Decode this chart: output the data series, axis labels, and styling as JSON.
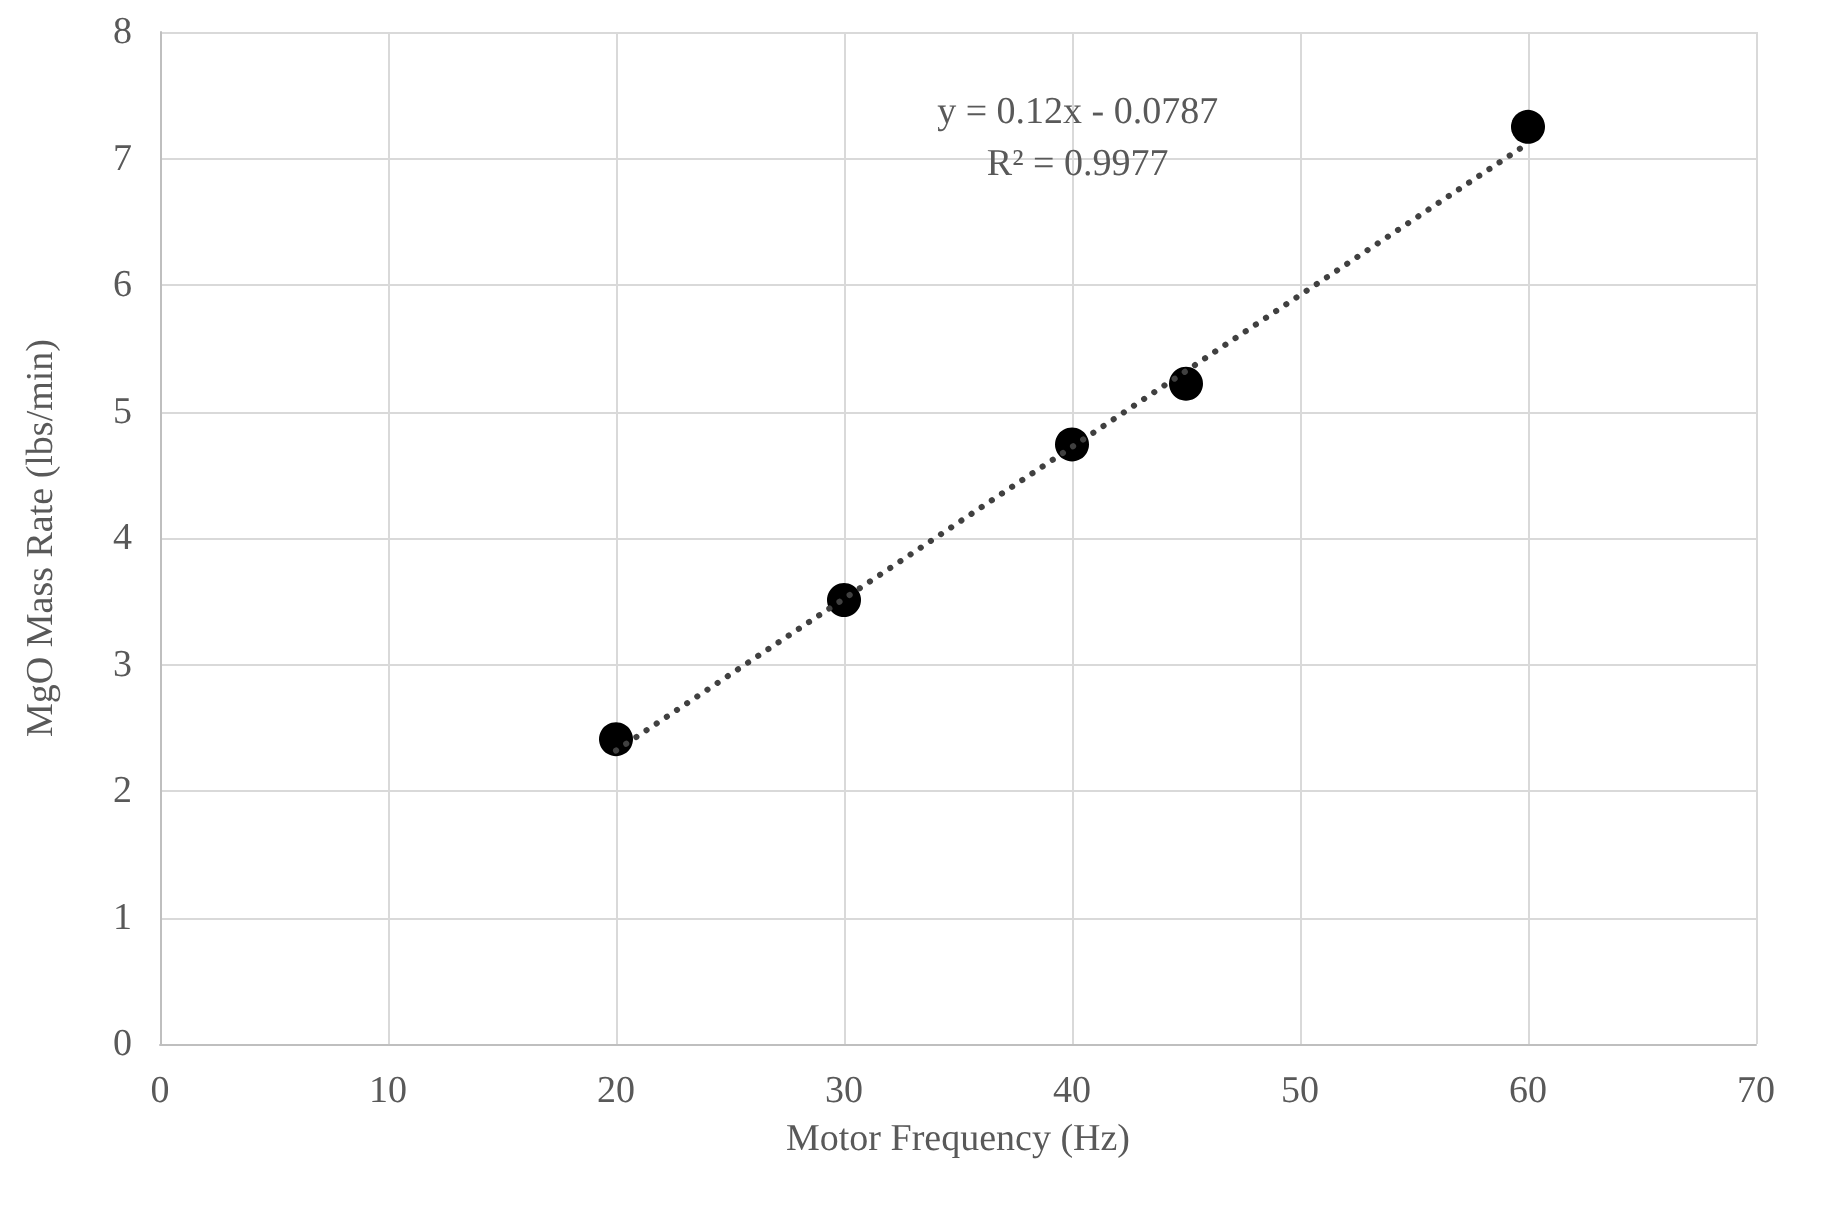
{
  "chart_data": {
    "type": "scatter",
    "xlabel": "Motor Frequency (Hz)",
    "ylabel": "MgO Mass Rate (lbs/min)",
    "annotations": [
      "y = 0.12x - 0.0787",
      "R² = 0.9977"
    ],
    "x": [
      20,
      30,
      40,
      45,
      60
    ],
    "series": [
      {
        "color": "#000000",
        "values": [
          2.41,
          3.51,
          4.74,
          5.22,
          7.25
        ]
      },
      {
        "type": "line",
        "color": "#404040",
        "line_style": "dotted",
        "marker": "none",
        "x": [
          20,
          60
        ],
        "values": [
          2.32,
          7.12
        ]
      }
    ],
    "marker": "circle",
    "grid": true,
    "xlim": [
      0,
      70
    ],
    "xticks": [
      0,
      10,
      20,
      30,
      40,
      50,
      60,
      70
    ],
    "ylim": [
      0,
      8
    ],
    "yticks": [
      0,
      1,
      2,
      3,
      4,
      5,
      6,
      7,
      8
    ]
  }
}
